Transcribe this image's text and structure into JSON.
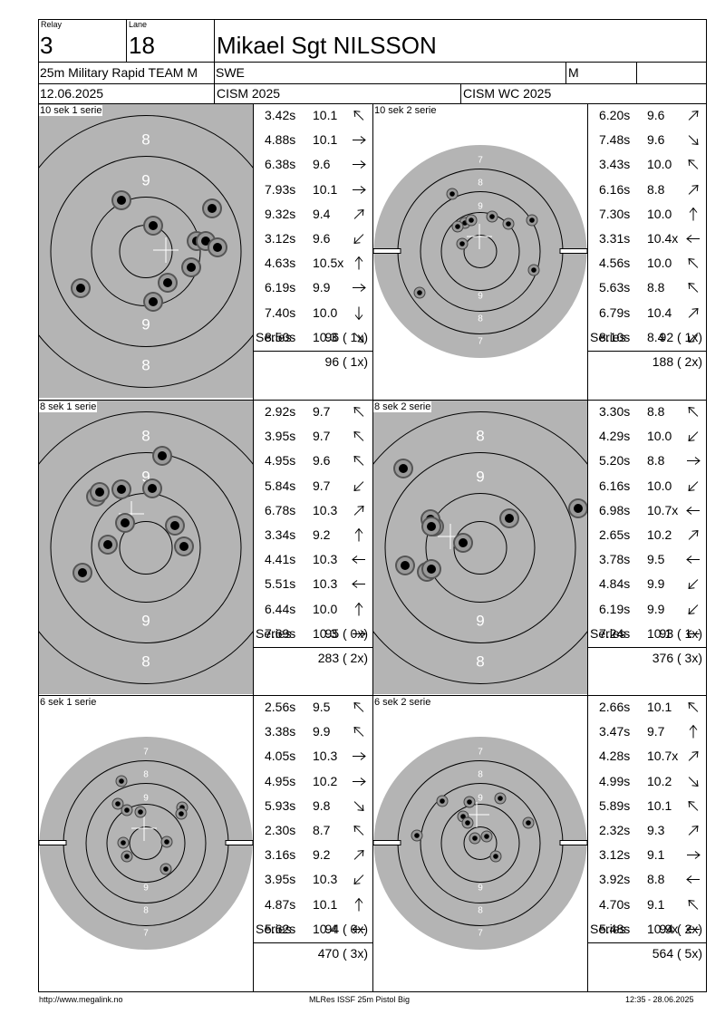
{
  "header": {
    "relay_label": "Relay",
    "relay_value": "3",
    "lane_label": "Lane",
    "lane_value": "18",
    "shooter_name": "Mikael Sgt NILSSON",
    "event": "25m Military Rapid TEAM M",
    "nation": "SWE",
    "gender": "M",
    "date": "12.06.2025",
    "competition": "CISM 2025",
    "competition_short": "CISM WC 2025"
  },
  "footer": {
    "website": "http://www.megalink.no",
    "software": "MLRes ISSF 25m Pistol Big",
    "printed": "12:35 - 28.06.2025"
  },
  "colors": {
    "target_gray": "#b4b4b4",
    "shot_outer": "#555555",
    "shot_mid": "#999999",
    "shot_core": "#000000"
  },
  "panels": [
    {
      "title": "10 sek 1 serie",
      "target_type": "precision",
      "shots": [
        {
          "time": "3.42s",
          "score": "10.1",
          "dir": "nw"
        },
        {
          "time": "4.88s",
          "score": "10.1",
          "dir": "e"
        },
        {
          "time": "6.38s",
          "score": "9.6",
          "dir": "e"
        },
        {
          "time": "7.93s",
          "score": "10.1",
          "dir": "e"
        },
        {
          "time": "9.32s",
          "score": "9.4",
          "dir": "ne"
        },
        {
          "time": "3.12s",
          "score": "9.6",
          "dir": "sw"
        },
        {
          "time": "4.63s",
          "score": "10.5x",
          "dir": "n"
        },
        {
          "time": "6.19s",
          "score": "9.9",
          "dir": "e"
        },
        {
          "time": "7.40s",
          "score": "10.0",
          "dir": "s"
        },
        {
          "time": "8.50s",
          "score": "10.3",
          "dir": "se"
        }
      ],
      "series_label": "Series",
      "series_total": "96 ( 1x)",
      "running_total": "96 ( 1x)"
    },
    {
      "title": "10 sek 2 serie",
      "target_type": "rapid",
      "shots": [
        {
          "time": "6.20s",
          "score": "9.6",
          "dir": "ne"
        },
        {
          "time": "7.48s",
          "score": "9.6",
          "dir": "se"
        },
        {
          "time": "3.43s",
          "score": "10.0",
          "dir": "nw"
        },
        {
          "time": "6.16s",
          "score": "8.8",
          "dir": "ne"
        },
        {
          "time": "7.30s",
          "score": "10.0",
          "dir": "n"
        },
        {
          "time": "3.31s",
          "score": "10.4x",
          "dir": "w"
        },
        {
          "time": "4.56s",
          "score": "10.0",
          "dir": "nw"
        },
        {
          "time": "5.63s",
          "score": "8.8",
          "dir": "nw"
        },
        {
          "time": "6.79s",
          "score": "10.4",
          "dir": "ne"
        },
        {
          "time": "8.10s",
          "score": "8.4",
          "dir": "sw"
        }
      ],
      "series_label": "Series",
      "series_total": "92 ( 1x)",
      "running_total": "188 ( 2x)"
    },
    {
      "title": "8 sek 1 serie",
      "target_type": "precision",
      "shots": [
        {
          "time": "2.92s",
          "score": "9.7",
          "dir": "nw"
        },
        {
          "time": "3.95s",
          "score": "9.7",
          "dir": "nw"
        },
        {
          "time": "4.95s",
          "score": "9.6",
          "dir": "nw"
        },
        {
          "time": "5.84s",
          "score": "9.7",
          "dir": "sw"
        },
        {
          "time": "6.78s",
          "score": "10.3",
          "dir": "ne"
        },
        {
          "time": "3.34s",
          "score": "9.2",
          "dir": "n"
        },
        {
          "time": "4.41s",
          "score": "10.3",
          "dir": "w"
        },
        {
          "time": "5.51s",
          "score": "10.3",
          "dir": "w"
        },
        {
          "time": "6.44s",
          "score": "10.0",
          "dir": "n"
        },
        {
          "time": "7.69s",
          "score": "10.3",
          "dir": "e"
        }
      ],
      "series_label": "Series",
      "series_total": "95 ( 0x)",
      "running_total": "283 ( 2x)"
    },
    {
      "title": "8 sek 2 serie",
      "target_type": "precision",
      "shots": [
        {
          "time": "3.30s",
          "score": "8.8",
          "dir": "nw"
        },
        {
          "time": "4.29s",
          "score": "10.0",
          "dir": "sw"
        },
        {
          "time": "5.20s",
          "score": "8.8",
          "dir": "e"
        },
        {
          "time": "6.16s",
          "score": "10.0",
          "dir": "sw"
        },
        {
          "time": "6.98s",
          "score": "10.7x",
          "dir": "w"
        },
        {
          "time": "2.65s",
          "score": "10.2",
          "dir": "ne"
        },
        {
          "time": "3.78s",
          "score": "9.5",
          "dir": "w"
        },
        {
          "time": "4.84s",
          "score": "9.9",
          "dir": "sw"
        },
        {
          "time": "6.19s",
          "score": "9.9",
          "dir": "sw"
        },
        {
          "time": "7.24s",
          "score": "10.1",
          "dir": "w"
        }
      ],
      "series_label": "Series",
      "series_total": "93 ( 1x)",
      "running_total": "376 ( 3x)"
    },
    {
      "title": "6 sek 1 serie",
      "target_type": "rapid",
      "shots": [
        {
          "time": "2.56s",
          "score": "9.5",
          "dir": "nw"
        },
        {
          "time": "3.38s",
          "score": "9.9",
          "dir": "nw"
        },
        {
          "time": "4.05s",
          "score": "10.3",
          "dir": "e"
        },
        {
          "time": "4.95s",
          "score": "10.2",
          "dir": "e"
        },
        {
          "time": "5.93s",
          "score": "9.8",
          "dir": "se"
        },
        {
          "time": "2.30s",
          "score": "8.7",
          "dir": "nw"
        },
        {
          "time": "3.16s",
          "score": "9.2",
          "dir": "ne"
        },
        {
          "time": "3.95s",
          "score": "10.3",
          "dir": "sw"
        },
        {
          "time": "4.87s",
          "score": "10.1",
          "dir": "n"
        },
        {
          "time": "5.62s",
          "score": "10.4",
          "dir": "w"
        }
      ],
      "series_label": "Series",
      "series_total": "94 ( 0x)",
      "running_total": "470 ( 3x)"
    },
    {
      "title": "6 sek 2 serie",
      "target_type": "rapid",
      "shots": [
        {
          "time": "2.66s",
          "score": "10.1",
          "dir": "nw"
        },
        {
          "time": "3.47s",
          "score": "9.7",
          "dir": "n"
        },
        {
          "time": "4.28s",
          "score": "10.7x",
          "dir": "ne"
        },
        {
          "time": "4.99s",
          "score": "10.2",
          "dir": "se"
        },
        {
          "time": "5.89s",
          "score": "10.1",
          "dir": "nw"
        },
        {
          "time": "2.32s",
          "score": "9.3",
          "dir": "ne"
        },
        {
          "time": "3.12s",
          "score": "9.1",
          "dir": "e"
        },
        {
          "time": "3.92s",
          "score": "8.8",
          "dir": "w"
        },
        {
          "time": "4.70s",
          "score": "9.1",
          "dir": "nw"
        },
        {
          "time": "5.48s",
          "score": "10.9x",
          "dir": "w"
        }
      ],
      "series_label": "Series",
      "series_total": "94 ( 2x)",
      "running_total": "564 ( 5x)"
    }
  ]
}
